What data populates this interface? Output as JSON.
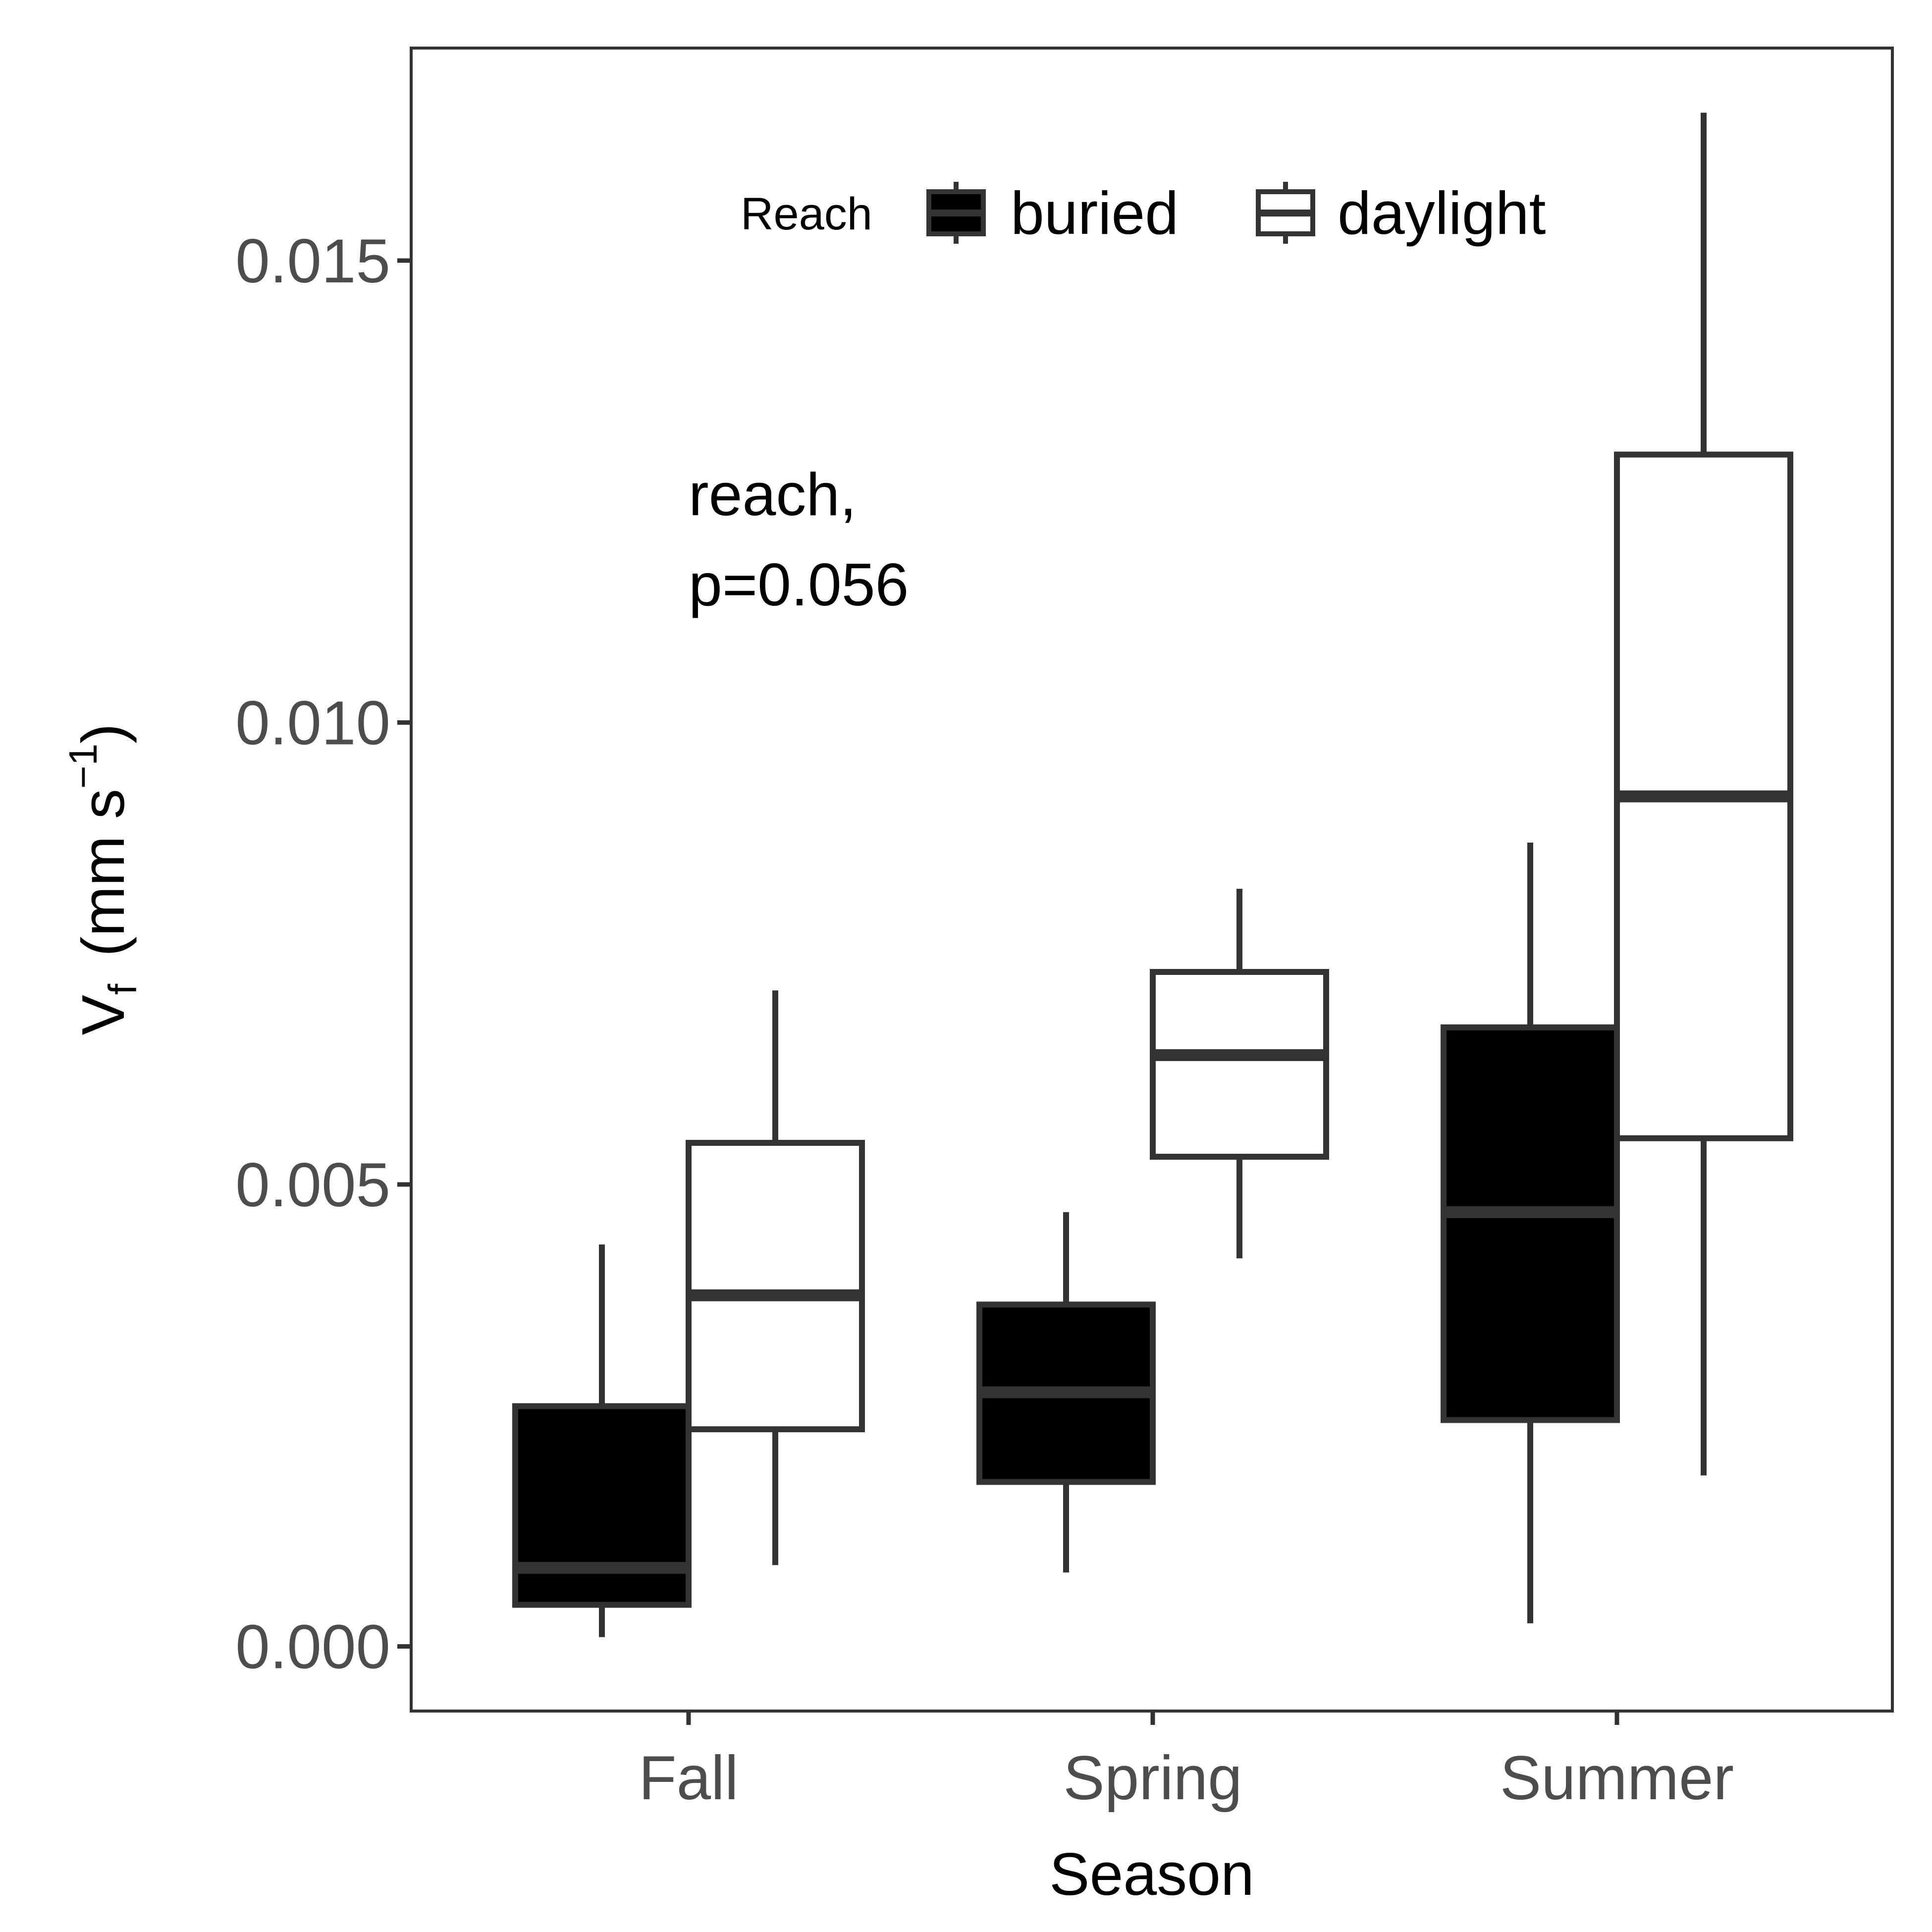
{
  "chart_data": {
    "type": "boxplot",
    "xlabel": "Season",
    "ylabel": {
      "base": "V",
      "subscript": "f",
      "units_open": "(mm s",
      "units_superscript": "−1",
      "units_close": ")"
    },
    "categories": [
      "Fall",
      "Spring",
      "Summer"
    ],
    "ylim": [
      -0.0007,
      0.0173
    ],
    "yticks": [
      0.0,
      0.005,
      0.01,
      0.015
    ],
    "ytick_labels": [
      "0.000",
      "0.005",
      "0.010",
      "0.015"
    ],
    "grid": false,
    "legend": {
      "title": "Reach",
      "position": "top-inside",
      "entries": [
        {
          "label": "buried",
          "fill": "#000000"
        },
        {
          "label": "daylight",
          "fill": "#ffffff"
        }
      ]
    },
    "annotation": {
      "lines": [
        "reach,",
        "p=0.056"
      ]
    },
    "series": [
      {
        "name": "buried",
        "fill": "#000000",
        "boxes": [
          {
            "category": "Fall",
            "whisker_low": 0.0001,
            "q1": 0.00045,
            "median": 0.00085,
            "q3": 0.0026,
            "whisker_high": 0.00435
          },
          {
            "category": "Spring",
            "whisker_low": 0.0008,
            "q1": 0.00178,
            "median": 0.00275,
            "q3": 0.0037,
            "whisker_high": 0.0047
          },
          {
            "category": "Summer",
            "whisker_low": 0.00025,
            "q1": 0.00245,
            "median": 0.0047,
            "q3": 0.0067,
            "whisker_high": 0.0087
          }
        ]
      },
      {
        "name": "daylight",
        "fill": "#ffffff",
        "boxes": [
          {
            "category": "Fall",
            "whisker_low": 0.00088,
            "q1": 0.00235,
            "median": 0.0038,
            "q3": 0.00545,
            "whisker_high": 0.0071
          },
          {
            "category": "Spring",
            "whisker_low": 0.0042,
            "q1": 0.0053,
            "median": 0.0064,
            "q3": 0.0073,
            "whisker_high": 0.0082
          },
          {
            "category": "Summer",
            "whisker_low": 0.00185,
            "q1": 0.0055,
            "median": 0.0092,
            "q3": 0.0129,
            "whisker_high": 0.0166
          }
        ]
      }
    ]
  }
}
